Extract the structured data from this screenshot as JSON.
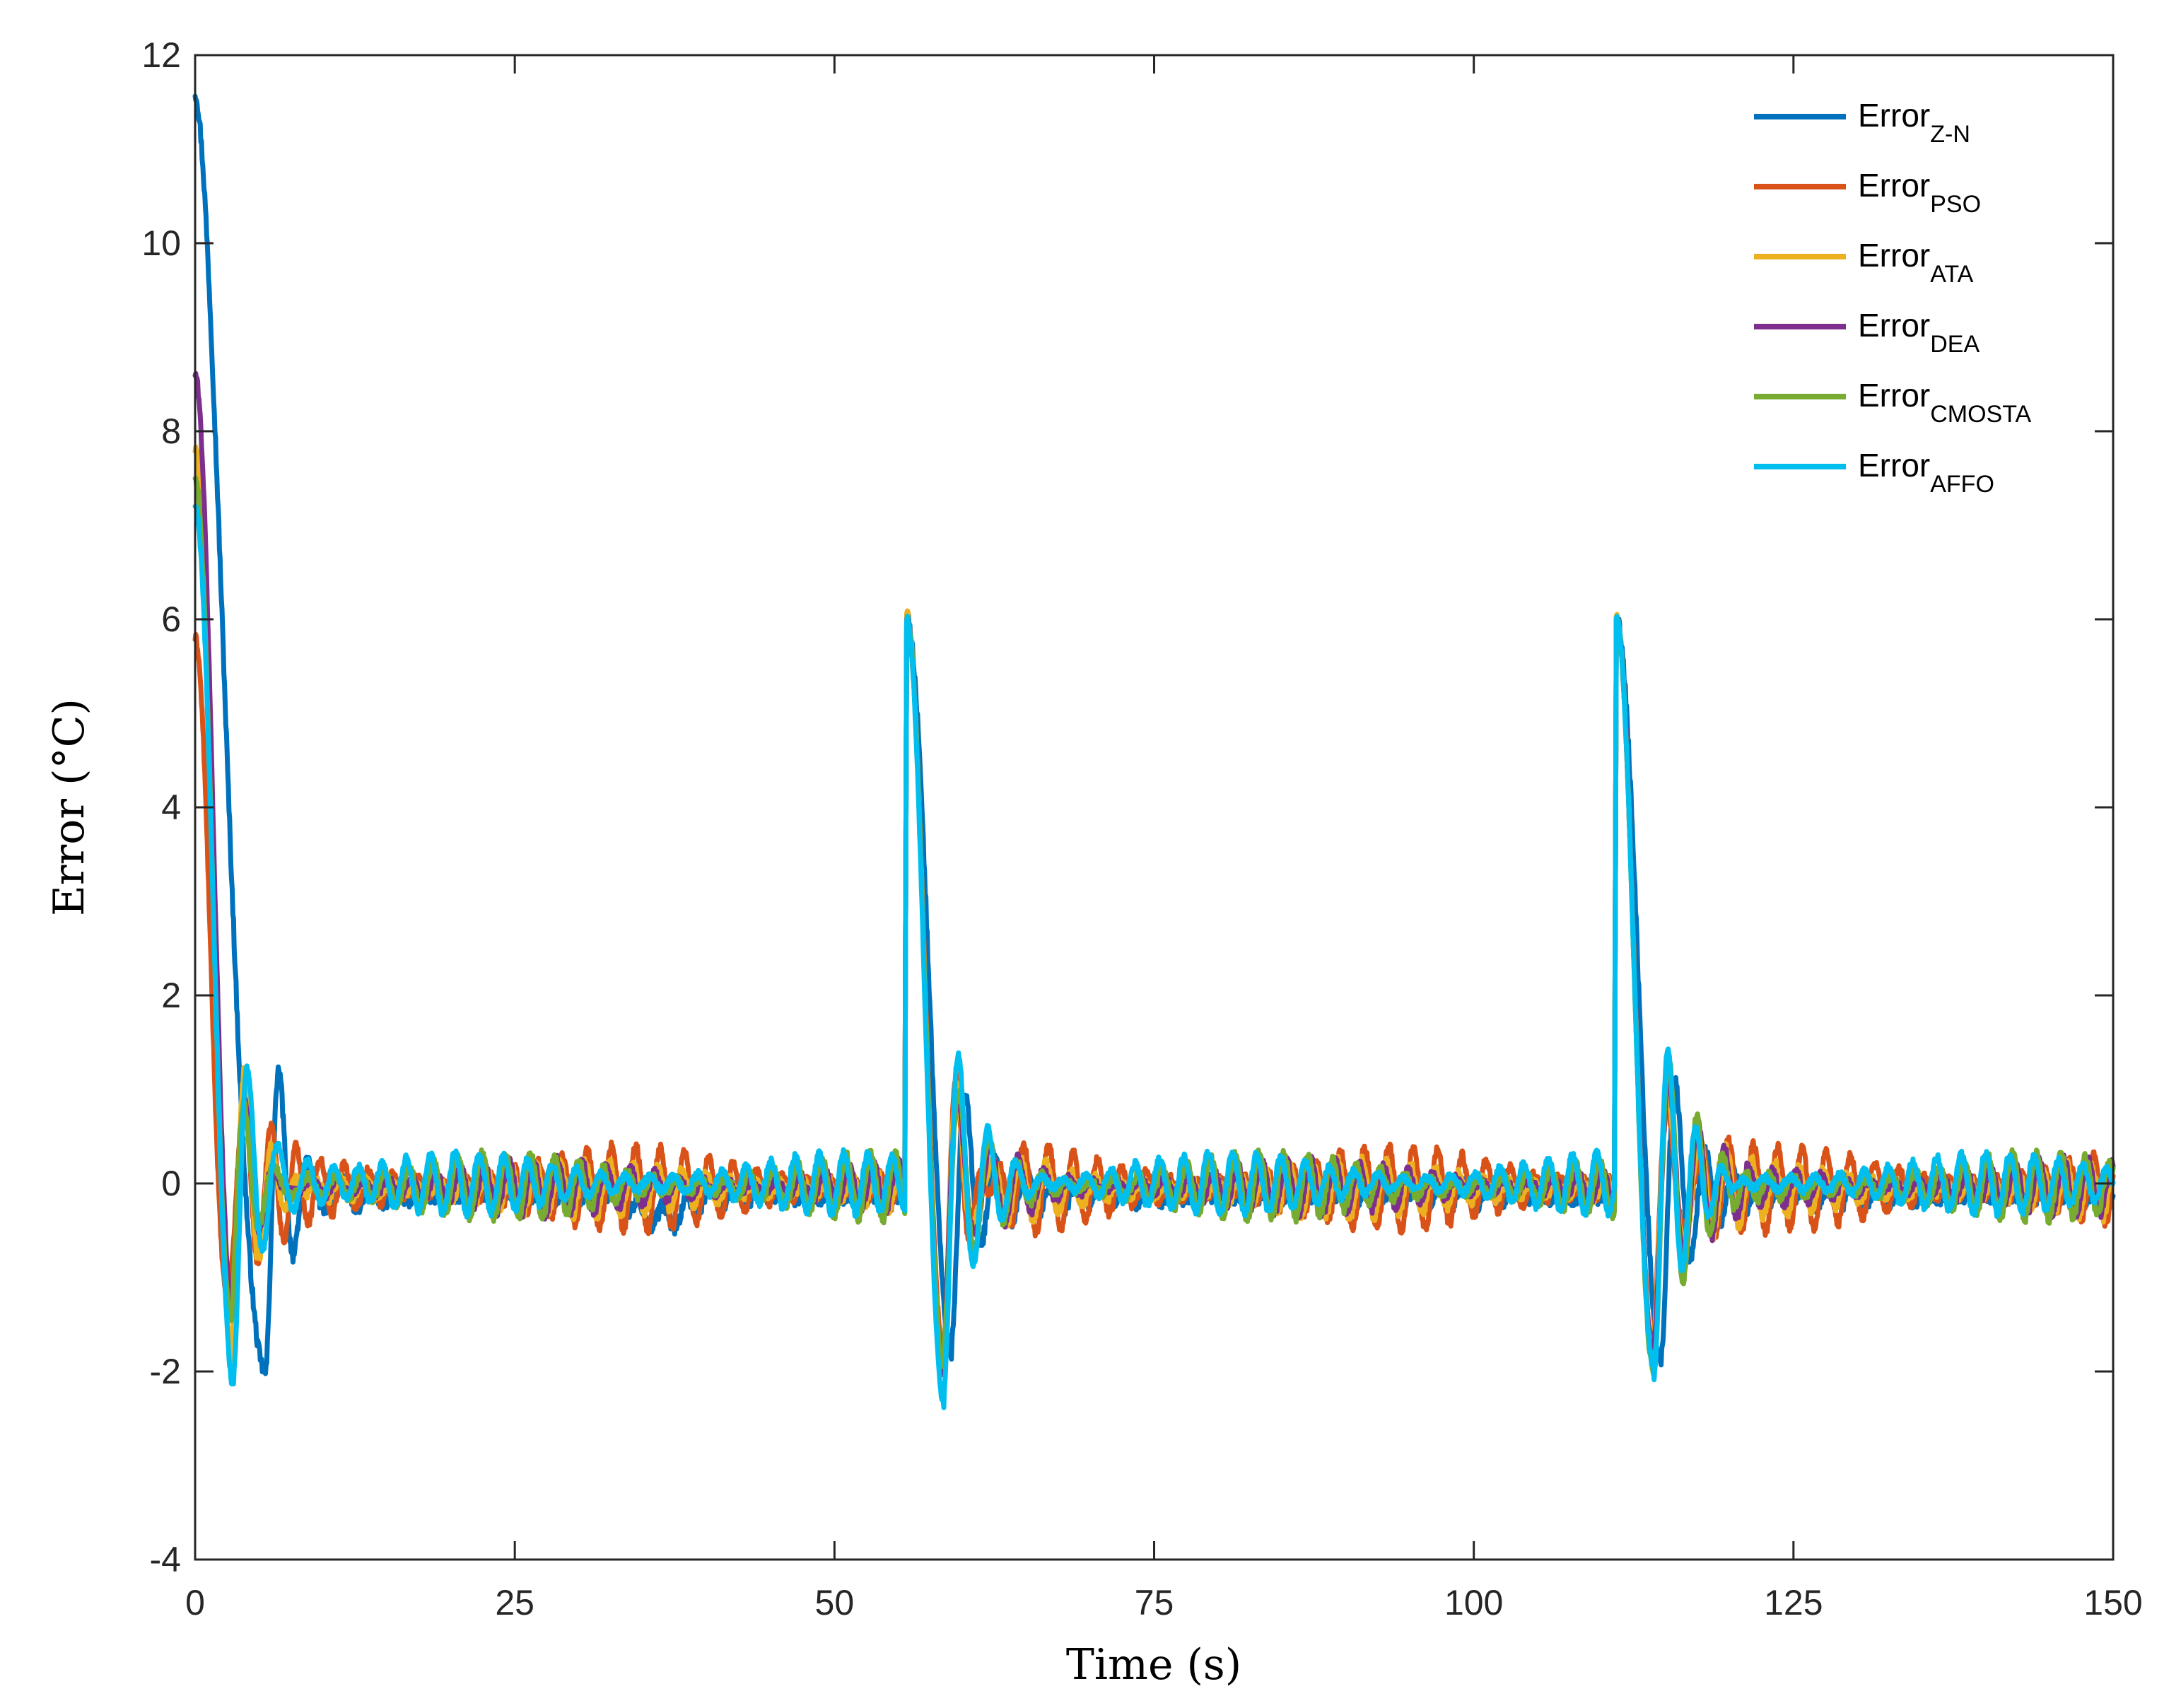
{
  "chart_data": {
    "type": "line",
    "xlabel": "Time (s)",
    "ylabel": "Error (°C)",
    "xlim": [
      0,
      150
    ],
    "ylim": [
      -4,
      12
    ],
    "xticks": [
      "0",
      "25",
      "50",
      "75",
      "100",
      "125",
      "150"
    ],
    "yticks": [
      "-4",
      "-2",
      "0",
      "2",
      "4",
      "6",
      "8",
      "10",
      "12"
    ],
    "grid": false,
    "legend_position": "top-right",
    "setpoint_changes_at": [
      55.5,
      111
    ],
    "series": [
      {
        "name": "Error",
        "subscript": "Z-N",
        "color": "#0072BD",
        "initial": 11.6,
        "rise_time": 5.5,
        "min": -2.0,
        "min_time": 3.5,
        "peak": 6.0,
        "segment_mins": [
          -2.0,
          -1.8,
          -1.9
        ],
        "osc_amp": 0.12,
        "noise": 0.08,
        "bias": -0.12
      },
      {
        "name": "Error",
        "subscript": "PSO",
        "color": "#D95319",
        "initial": 5.8,
        "rise_time": 2.5,
        "min": -1.2,
        "min_time": 3.0,
        "peak": 6.0,
        "segment_mins": [
          -1.2,
          -1.8,
          -1.8
        ],
        "osc_amp": 0.45,
        "noise": 0.05,
        "bias": -0.05
      },
      {
        "name": "Error",
        "subscript": "ATA",
        "color": "#EDB120",
        "initial": 7.8,
        "rise_time": 2.8,
        "min": -1.6,
        "min_time": 3.2,
        "peak": 6.05,
        "segment_mins": [
          -1.6,
          -2.0,
          -1.9
        ],
        "osc_amp": 0.3,
        "noise": 0.06,
        "bias": -0.06
      },
      {
        "name": "Error",
        "subscript": "DEA",
        "color": "#7E2F8E",
        "initial": 8.6,
        "rise_time": 2.9,
        "min": -1.3,
        "min_time": 3.3,
        "peak": 6.0,
        "segment_mins": [
          -1.3,
          -2.0,
          -1.9
        ],
        "osc_amp": 0.3,
        "noise": 0.05,
        "bias": -0.04
      },
      {
        "name": "Error",
        "subscript": "CMOSTA",
        "color": "#77AC30",
        "initial": 7.5,
        "rise_time": 2.8,
        "min": -1.4,
        "min_time": 3.3,
        "peak": 6.0,
        "segment_mins": [
          -1.4,
          -2.0,
          -2.0
        ],
        "osc_amp": 0.35,
        "noise": 0.05,
        "bias": -0.03
      },
      {
        "name": "Error",
        "subscript": "AFFO",
        "color": "#00BFEF",
        "initial": 7.2,
        "rise_time": 3.0,
        "min": -2.15,
        "min_time": 3.6,
        "peak": 6.0,
        "segment_mins": [
          -2.15,
          -2.35,
          -1.95
        ],
        "osc_amp": 0.32,
        "noise": 0.04,
        "bias": 0.0
      }
    ]
  }
}
